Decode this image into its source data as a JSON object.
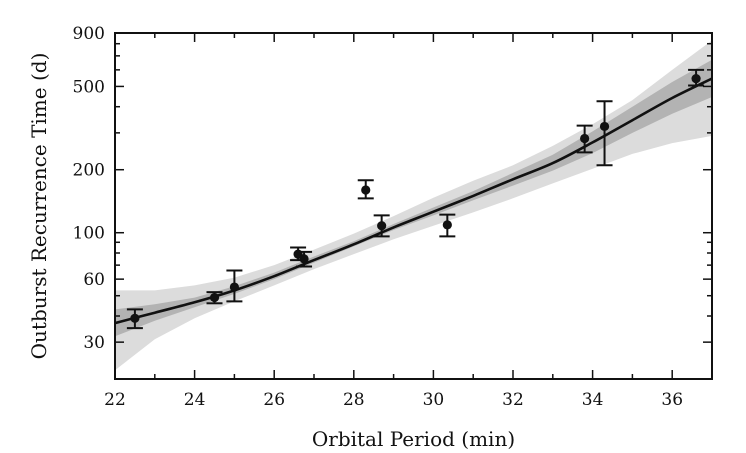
{
  "chart_data": {
    "type": "scatter",
    "title": "",
    "xlabel": "Orbital Period (min)",
    "ylabel": "Outburst Recurrence Time (d)",
    "xlim": [
      22,
      37
    ],
    "ylim": [
      20,
      900
    ],
    "yscale": "log",
    "grid": false,
    "legend": "none",
    "x_ticks": [
      22,
      24,
      26,
      28,
      30,
      32,
      34,
      36
    ],
    "x_tick_labels": [
      "22",
      "24",
      "26",
      "28",
      "30",
      "32",
      "34",
      "36"
    ],
    "y_ticks": [
      30,
      60,
      100,
      200,
      500,
      900
    ],
    "y_tick_labels": [
      "30",
      "60",
      "100",
      "200",
      "500",
      "900"
    ],
    "colors": {
      "points": "#111111",
      "fit_line": "#111111",
      "band_inner": "#b3b3b3",
      "band_outer": "#dcdcdc",
      "axes": "#111111"
    },
    "series": [
      {
        "kind": "points_with_errorbars",
        "x": [
          22.5,
          24.5,
          25.0,
          26.6,
          26.75,
          28.3,
          28.7,
          30.35,
          33.8,
          34.3,
          36.6
        ],
        "y": [
          39,
          49,
          55,
          79,
          75,
          160,
          108,
          109,
          282,
          322,
          545
        ],
        "y_err_low": [
          35,
          46,
          47,
          74,
          69,
          146,
          96,
          96,
          242,
          210,
          505
        ],
        "y_err_high": [
          43,
          52,
          66,
          85,
          81,
          178,
          121,
          122,
          325,
          425,
          600
        ]
      },
      {
        "kind": "fit_line",
        "x": [
          22,
          23,
          24,
          25,
          26,
          27,
          28,
          29,
          30,
          31,
          32,
          33,
          34,
          35,
          36,
          37
        ],
        "y": [
          37,
          41.5,
          46.5,
          53,
          62,
          74,
          88,
          106,
          126,
          150,
          180,
          215,
          270,
          345,
          440,
          545
        ]
      },
      {
        "kind": "confidence_band_inner",
        "x": [
          22,
          23,
          24,
          25,
          26,
          27,
          28,
          29,
          30,
          31,
          32,
          33,
          34,
          35,
          36,
          37
        ],
        "y_low": [
          32,
          38,
          44,
          51,
          60,
          72,
          86,
          103,
          121,
          143,
          168,
          198,
          240,
          300,
          370,
          445
        ],
        "y_high": [
          43,
          45.5,
          49,
          55.5,
          64.5,
          77,
          91,
          110,
          132,
          158,
          193,
          236,
          305,
          400,
          525,
          670
        ]
      },
      {
        "kind": "confidence_band_outer",
        "x": [
          22,
          23,
          24,
          25,
          26,
          27,
          28,
          29,
          30,
          31,
          32,
          33,
          34,
          35,
          36,
          37
        ],
        "y_low": [
          22,
          31,
          39,
          47,
          56,
          67,
          79,
          93,
          108,
          125,
          146,
          172,
          202,
          238,
          268,
          290
        ],
        "y_high": [
          53,
          53,
          56,
          61,
          70,
          83,
          99,
          120,
          147,
          177,
          210,
          260,
          330,
          430,
          600,
          830
        ]
      }
    ]
  }
}
